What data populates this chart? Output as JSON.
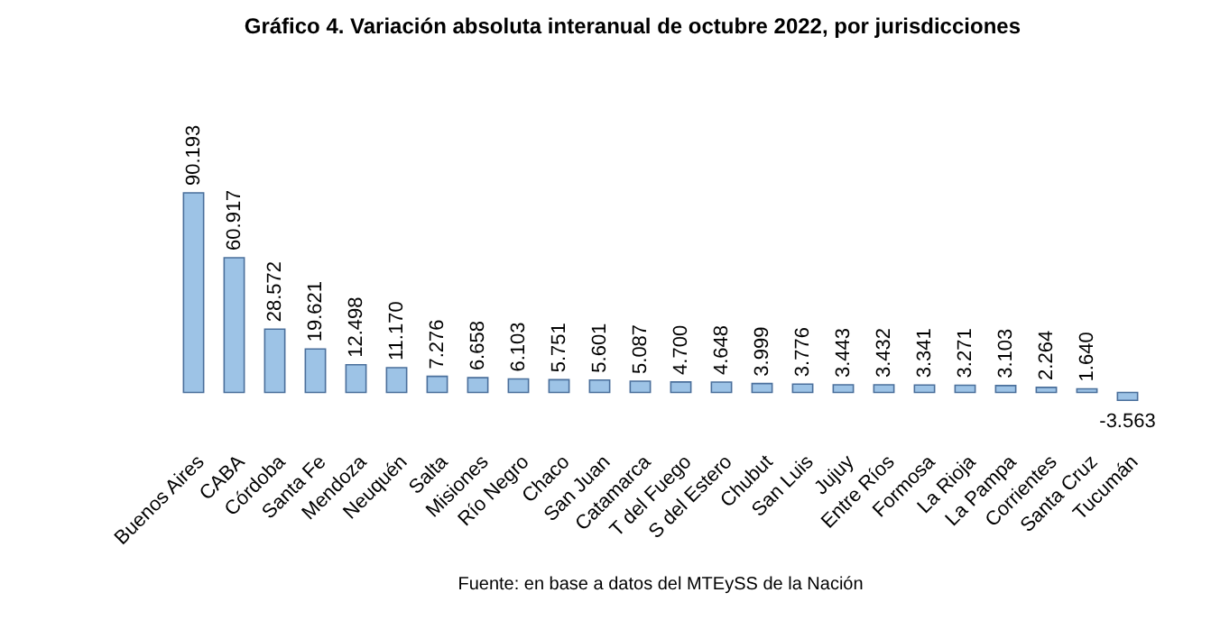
{
  "chart_data": {
    "type": "bar",
    "title": "Gráfico 4. Variación absoluta interanual de octubre 2022, por jurisdicciones",
    "categories": [
      "Buenos Aires",
      "CABA",
      "Córdoba",
      "Santa Fe",
      "Mendoza",
      "Neuquén",
      "Salta",
      "Misiones",
      "Río Negro",
      "Chaco",
      "San Juan",
      "Catamarca",
      "T del Fuego",
      "S del Estero",
      "Chubut",
      "San Luis",
      "Jujuy",
      "Entre Ríos",
      "Formosa",
      "La Rioja",
      "La Pampa",
      "Corrientes",
      "Santa Cruz",
      "Tucumán"
    ],
    "values": [
      90193,
      60917,
      28572,
      19621,
      12498,
      11170,
      7276,
      6658,
      6103,
      5751,
      5601,
      5087,
      4700,
      4648,
      3999,
      3776,
      3443,
      3432,
      3341,
      3271,
      3103,
      2264,
      1640,
      -3563
    ],
    "value_labels": [
      "90.193",
      "60.917",
      "28.572",
      "19.621",
      "12.498",
      "11.170",
      "7.276",
      "6.658",
      "6.103",
      "5.751",
      "5.601",
      "5.087",
      "4.700",
      "4.648",
      "3.999",
      "3.776",
      "3.443",
      "3.432",
      "3.341",
      "3.271",
      "3.103",
      "2.264",
      "1.640",
      "-3.563"
    ],
    "color": "#9dc3e6",
    "annotations": [
      "Fuente: en base a datos del MTEySS de la Nación"
    ]
  }
}
